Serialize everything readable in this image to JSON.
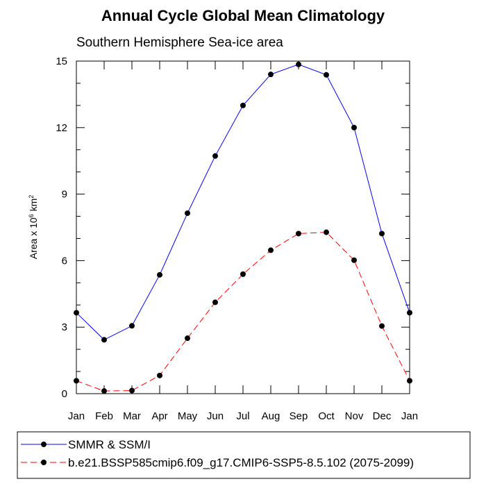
{
  "chart_data": {
    "type": "line",
    "title": "Annual Cycle Global Mean Climatology",
    "subtitle": "Southern Hemisphere Sea-ice area",
    "ylabel": {
      "prefix": "Area x 10",
      "exp1": "6",
      "mid": " km",
      "exp2": "2"
    },
    "xlabel": "",
    "categories": [
      "Jan",
      "Feb",
      "Mar",
      "Apr",
      "May",
      "Jun",
      "Jul",
      "Aug",
      "Sep",
      "Oct",
      "Nov",
      "Dec",
      "Jan"
    ],
    "ylim": [
      0,
      15
    ],
    "yticks": [
      "0",
      "3",
      "6",
      "9",
      "12",
      "15"
    ],
    "grid": false,
    "legend_position": "bottom",
    "series": [
      {
        "name": "SMMR & SSM/I",
        "color": "#0000ff",
        "dash": "solid",
        "marker": "filled-circle",
        "values": [
          3.65,
          2.43,
          3.06,
          5.36,
          8.14,
          10.72,
          13.0,
          14.4,
          14.85,
          14.38,
          12.0,
          7.22,
          3.65
        ]
      },
      {
        "name": "b.e21.BSSP585cmip6.f09_g17.CMIP6-SSP5-8.5.102 (2075-2099)",
        "color": "#ff0000",
        "dash": "dashed",
        "marker": "filled-circle",
        "values": [
          0.58,
          0.12,
          0.14,
          0.82,
          2.5,
          4.12,
          5.39,
          6.47,
          7.22,
          7.28,
          6.02,
          3.05,
          0.58
        ]
      }
    ]
  }
}
